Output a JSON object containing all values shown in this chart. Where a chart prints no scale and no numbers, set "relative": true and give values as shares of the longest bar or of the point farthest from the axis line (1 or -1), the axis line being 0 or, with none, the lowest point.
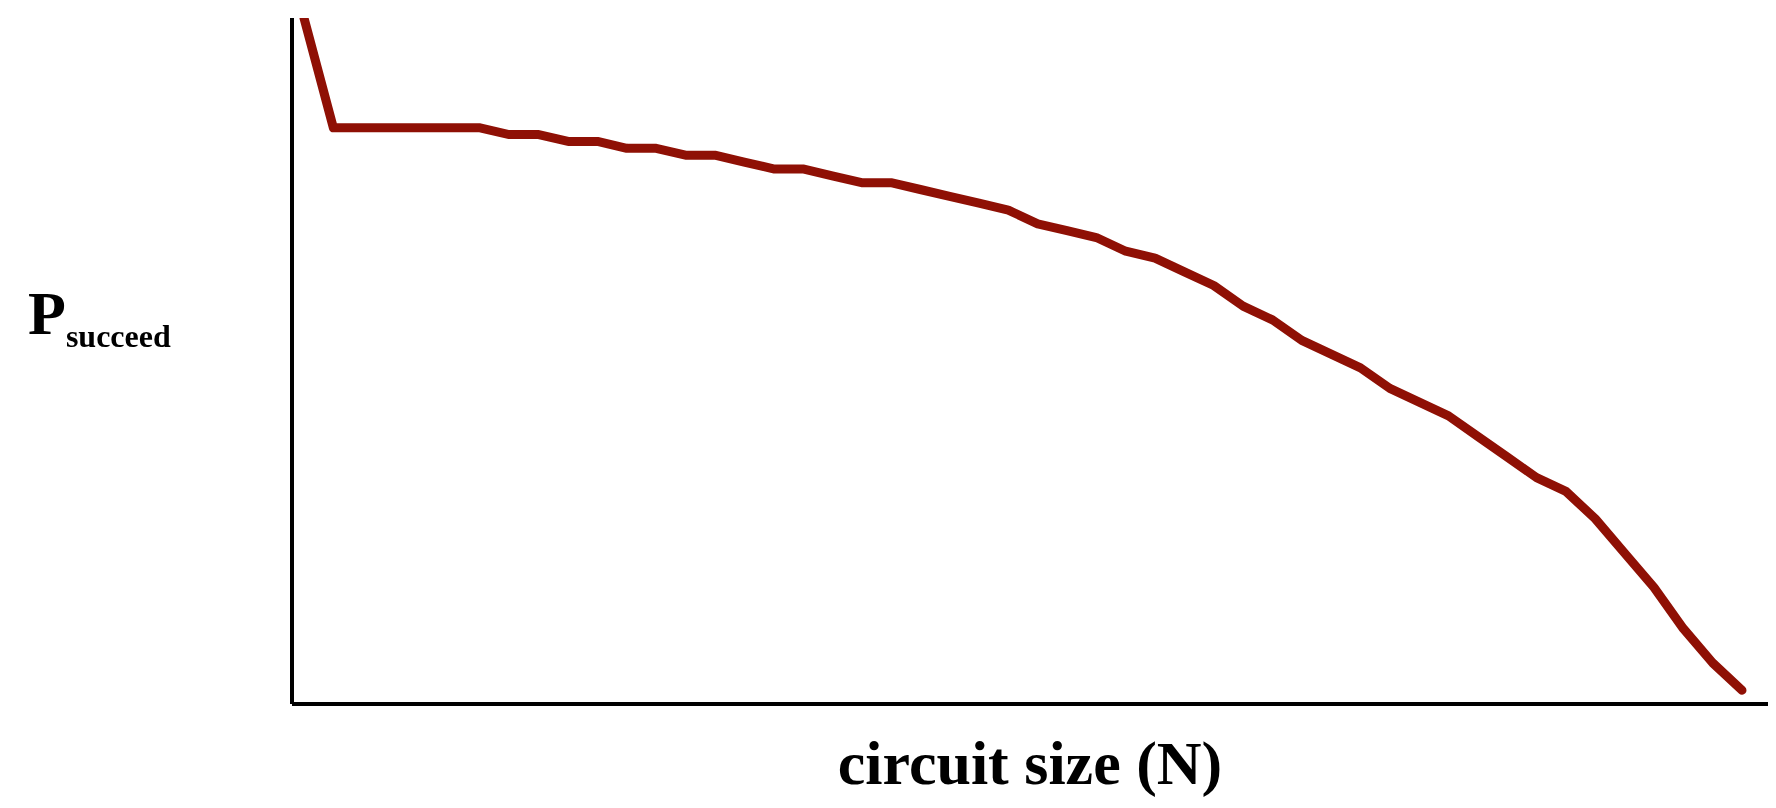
{
  "chart_data": {
    "type": "line",
    "xlabel": "circuit size (N)",
    "ylabel": "P$_{succeed}$",
    "relative": true,
    "grid": false,
    "legend": false,
    "marker": "none",
    "line_style": "solid",
    "categories": [
      null,
      null,
      null,
      null,
      null,
      null,
      null,
      null,
      null,
      null,
      null,
      null,
      null,
      null,
      null,
      null,
      null,
      null,
      null,
      null,
      null,
      null,
      null,
      null,
      null,
      null,
      null,
      null,
      null,
      null,
      null,
      null,
      null,
      null,
      null,
      null,
      null,
      null,
      null,
      null,
      null,
      null,
      null,
      null,
      null,
      null,
      null,
      null,
      null,
      null
    ],
    "series": [
      {
        "color": "#8f1005",
        "values": [
          1.0,
          0.84,
          0.84,
          0.84,
          0.84,
          0.84,
          0.84,
          0.83,
          0.83,
          0.82,
          0.82,
          0.81,
          0.81,
          0.8,
          0.8,
          0.79,
          0.78,
          0.78,
          0.77,
          0.76,
          0.76,
          0.75,
          0.74,
          0.73,
          0.72,
          0.7,
          0.69,
          0.68,
          0.66,
          0.65,
          0.63,
          0.61,
          0.58,
          0.56,
          0.53,
          0.51,
          0.49,
          0.46,
          0.44,
          0.42,
          0.39,
          0.36,
          0.33,
          0.31,
          0.27,
          0.22,
          0.17,
          0.11,
          0.06,
          0.02
        ]
      }
    ]
  }
}
